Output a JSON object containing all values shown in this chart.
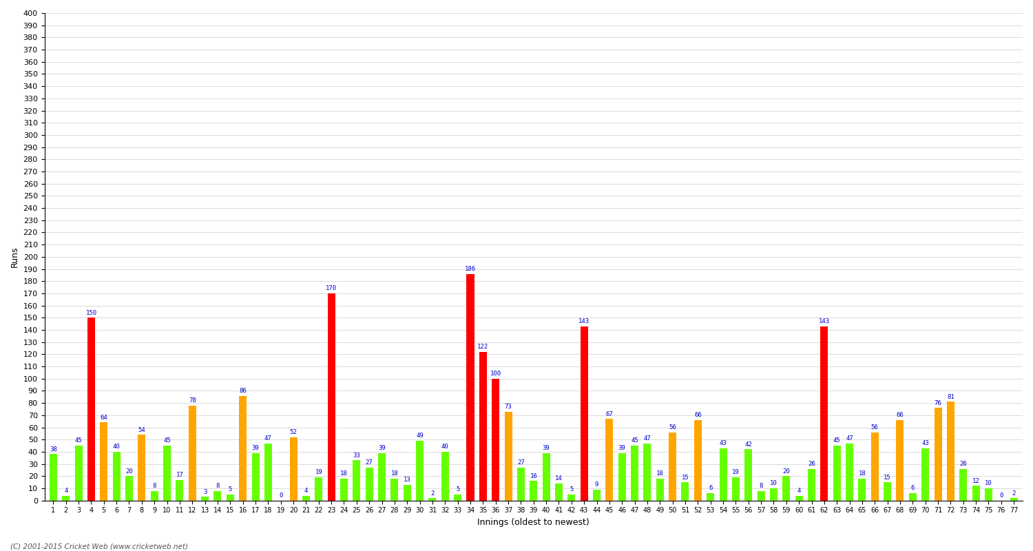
{
  "xlabel": "Innings (oldest to newest)",
  "ylabel": "Runs",
  "footer": "(C) 2001-2015 Cricket Web (www.cricketweb.net)",
  "ylim": [
    0,
    400
  ],
  "scores": [
    38,
    4,
    45,
    150,
    64,
    40,
    20,
    54,
    8,
    45,
    17,
    78,
    3,
    8,
    5,
    86,
    39,
    47,
    0,
    52,
    4,
    19,
    170,
    18,
    33,
    27,
    39,
    18,
    13,
    49,
    2,
    40,
    5,
    186,
    122,
    100,
    73,
    27,
    16,
    39,
    14,
    5,
    143,
    9,
    67,
    39,
    45,
    47,
    18,
    56,
    15,
    66,
    6,
    43,
    19,
    42,
    8,
    10,
    20,
    4,
    26,
    143,
    45,
    47,
    18,
    56,
    15,
    66,
    6,
    43,
    76,
    81,
    26,
    12,
    10,
    0,
    2
  ],
  "color_century": "#FF0000",
  "color_fifty": "#FFA500",
  "color_other": "#66FF00",
  "label_color": "#0000CC",
  "background_color": "#FFFFFF",
  "grid_color": "#CCCCCC",
  "label_fontsize": 6.5,
  "axis_label_fontsize": 9,
  "tick_fontsize": 8
}
